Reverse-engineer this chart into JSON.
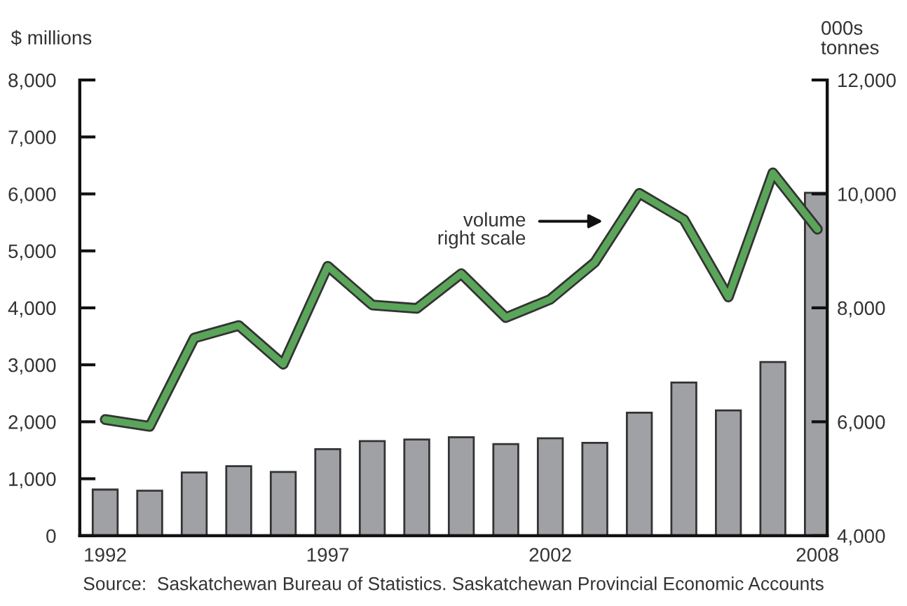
{
  "chart_data": {
    "type": "bar",
    "ylabel": "$ millions",
    "y2label": "000s\ntonnes",
    "categories": [
      "1992",
      null,
      null,
      null,
      null,
      "1997",
      null,
      null,
      null,
      null,
      "2002",
      null,
      null,
      null,
      null,
      null,
      "2008"
    ],
    "series": [
      {
        "color": "#a0a1a5",
        "values": [
          810,
          790,
          1110,
          1220,
          1120,
          1520,
          1660,
          1690,
          1730,
          1610,
          1710,
          1630,
          2160,
          2690,
          2200,
          3050,
          6020
        ]
      },
      {
        "type": "line",
        "axis": "y2",
        "color": "#5aa55a",
        "values": [
          6040,
          5920,
          7470,
          7690,
          7010,
          8730,
          8050,
          7990,
          8600,
          7830,
          8150,
          8800,
          10010,
          9550,
          8190,
          10370,
          9380
        ]
      }
    ],
    "ylim": [
      0,
      8000
    ],
    "yticks": [
      0,
      {
        "value": 1000,
        "label": "1,000"
      },
      {
        "value": 2000,
        "label": "2,000"
      },
      {
        "value": 3000,
        "label": "3,000"
      },
      {
        "value": 4000,
        "label": "4,000"
      },
      {
        "value": 5000,
        "label": "5,000"
      },
      {
        "value": 6000,
        "label": "6,000"
      },
      {
        "value": 7000,
        "label": "7,000"
      },
      {
        "value": 8000,
        "label": "8,000"
      }
    ],
    "y2lim": [
      4000,
      12000
    ],
    "y2ticks": [
      {
        "value": 4000,
        "label": "4,000"
      },
      {
        "value": 6000,
        "label": "6,000"
      },
      {
        "value": 8000,
        "label": "8,000"
      },
      {
        "value": 10000,
        "label": "10,000"
      },
      {
        "value": 12000,
        "label": "12,000"
      }
    ],
    "annotations": [
      "volume\nright scale",
      "Source:  Saskatchewan Bureau of Statistics. Saskatchewan Provincial Economic Accounts"
    ],
    "grid": false,
    "legend": false
  }
}
